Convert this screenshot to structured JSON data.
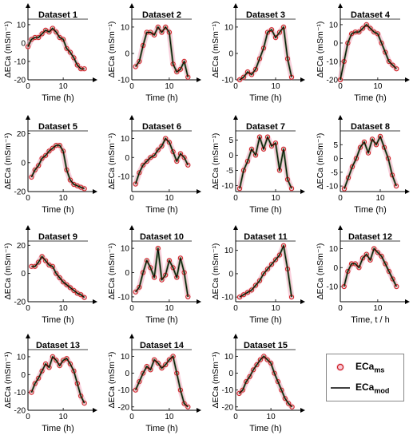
{
  "figure": {
    "marker_color": "#cc2222",
    "marker_halo_color": "#f4a8c0",
    "fit_color": "#000000",
    "fit_band_color": "#1e6e1e"
  },
  "chart_data": [
    {
      "type": "line",
      "title": "Dataset 1",
      "xlabel": "Time (h)",
      "ylabel": "ΔECa (mSm⁻¹)",
      "xlim": [
        0,
        17
      ],
      "ylim": [
        -20,
        13
      ],
      "xticks": [
        0,
        10
      ],
      "yticks": [
        -20,
        -10,
        0,
        10
      ],
      "x": [
        0,
        1,
        2,
        3,
        4,
        5,
        6,
        7,
        8,
        9,
        10,
        11,
        12,
        13,
        14,
        15,
        16
      ],
      "values": [
        -2,
        2,
        3,
        3,
        5,
        7,
        6,
        8,
        6,
        3,
        2,
        -3,
        -5,
        -8,
        -12,
        -14,
        -14
      ]
    },
    {
      "type": "line",
      "title": "Dataset 2",
      "xlabel": "Time (h)",
      "ylabel": "ΔECa (mSm⁻¹)",
      "xlim": [
        0,
        16
      ],
      "ylim": [
        -10,
        13
      ],
      "xticks": [
        0,
        10
      ],
      "yticks": [
        -10,
        0,
        10
      ],
      "x": [
        1,
        2,
        3,
        4,
        5,
        6,
        7,
        8,
        9,
        10,
        11,
        12,
        13,
        14,
        15
      ],
      "values": [
        -5,
        -3,
        3,
        8,
        8,
        7,
        10,
        8,
        10,
        8,
        -4,
        -7,
        -6,
        -3,
        -9
      ]
    },
    {
      "type": "line",
      "title": "Dataset 3",
      "xlabel": "Time (h)",
      "ylabel": "ΔECa (mSm⁻¹)",
      "xlim": [
        0,
        15
      ],
      "ylim": [
        -10,
        13
      ],
      "xticks": [
        0,
        10
      ],
      "yticks": [
        -10,
        0,
        10
      ],
      "x": [
        1,
        2,
        3,
        4,
        5,
        6,
        7,
        8,
        9,
        10,
        11,
        12,
        13,
        14
      ],
      "values": [
        -10,
        -9,
        -7,
        -8,
        -6,
        -2,
        2,
        8,
        9,
        6,
        8,
        10,
        -2,
        -9
      ]
    },
    {
      "type": "line",
      "title": "Dataset 4",
      "xlabel": "Time (h)",
      "ylabel": "ΔECa (mSm⁻¹)",
      "xlim": [
        0,
        16
      ],
      "ylim": [
        -20,
        13
      ],
      "xticks": [
        0,
        10
      ],
      "yticks": [
        -20,
        -10,
        0,
        10
      ],
      "x": [
        0,
        1,
        2,
        3,
        4,
        5,
        6,
        7,
        8,
        9,
        10,
        11,
        12,
        13,
        14,
        15
      ],
      "values": [
        -20,
        -10,
        0,
        5,
        6,
        6,
        8,
        10,
        8,
        6,
        5,
        0,
        -5,
        -10,
        -12,
        -14
      ]
    },
    {
      "type": "line",
      "title": "Dataset 5",
      "xlabel": "Time (h)",
      "ylabel": "ΔECa (mSm⁻¹)",
      "xlim": [
        0,
        17
      ],
      "ylim": [
        -20,
        22
      ],
      "xticks": [
        0,
        10
      ],
      "yticks": [
        -20,
        0,
        20
      ],
      "x": [
        1,
        2,
        3,
        4,
        5,
        6,
        7,
        8,
        9,
        10,
        11,
        12,
        13,
        14,
        15,
        16
      ],
      "values": [
        -10,
        -5,
        -2,
        3,
        5,
        8,
        10,
        12,
        12,
        8,
        -5,
        -12,
        -15,
        -16,
        -17,
        -18
      ]
    },
    {
      "type": "line",
      "title": "Dataset 6",
      "xlabel": "Time (h)",
      "ylabel": "ΔECa (mSm⁻¹)",
      "xlim": [
        0,
        16
      ],
      "ylim": [
        -18,
        14
      ],
      "xticks": [
        0,
        10
      ],
      "yticks": [
        -10,
        0,
        10
      ],
      "x": [
        1,
        2,
        3,
        4,
        5,
        6,
        7,
        8,
        9,
        10,
        11,
        12,
        13,
        14,
        15
      ],
      "values": [
        -14,
        -8,
        -4,
        -2,
        0,
        1,
        4,
        6,
        10,
        8,
        3,
        -2,
        2,
        0,
        -4
      ]
    },
    {
      "type": "line",
      "title": "Dataset 7",
      "xlabel": "Time (h)",
      "ylabel": "ΔECa (mSm⁻¹)",
      "xlim": [
        0,
        15
      ],
      "ylim": [
        -12,
        8
      ],
      "xticks": [
        0,
        10
      ],
      "yticks": [
        -10,
        -5,
        0,
        5
      ],
      "x": [
        1,
        2,
        3,
        4,
        5,
        6,
        7,
        8,
        9,
        10,
        11,
        12,
        13,
        14
      ],
      "values": [
        -11,
        -5,
        -2,
        2,
        0,
        6,
        2,
        6,
        3,
        4,
        -5,
        2,
        -8,
        -11
      ]
    },
    {
      "type": "line",
      "title": "Dataset 8",
      "xlabel": "Time (h)",
      "ylabel": "ΔECa (mSm⁻¹)",
      "xlim": [
        0,
        15
      ],
      "ylim": [
        -12,
        10
      ],
      "xticks": [
        0,
        10
      ],
      "yticks": [
        -10,
        -5,
        0,
        5
      ],
      "x": [
        1,
        2,
        3,
        4,
        5,
        6,
        7,
        8,
        9,
        10,
        11,
        12,
        13,
        14
      ],
      "values": [
        -11,
        -7,
        -3,
        0,
        4,
        6,
        2,
        7,
        5,
        8,
        4,
        0,
        -6,
        -10
      ]
    },
    {
      "type": "line",
      "title": "Dataset 9",
      "xlabel": "Time (h)",
      "ylabel": "ΔECa (mSm⁻¹)",
      "xlim": [
        0,
        17
      ],
      "ylim": [
        -20,
        23
      ],
      "xticks": [
        0,
        10
      ],
      "yticks": [
        -20,
        0,
        20
      ],
      "x": [
        1,
        2,
        3,
        4,
        5,
        6,
        7,
        8,
        9,
        10,
        11,
        12,
        13,
        14,
        15,
        16
      ],
      "values": [
        5,
        5,
        8,
        12,
        9,
        6,
        5,
        0,
        -3,
        -6,
        -8,
        -10,
        -12,
        -14,
        -15,
        -17
      ]
    },
    {
      "type": "line",
      "title": "Dataset 10",
      "xlabel": "Time (h)",
      "ylabel": "ΔECa (mSm⁻¹)",
      "xlim": [
        0,
        16
      ],
      "ylim": [
        -12,
        13
      ],
      "xticks": [
        0,
        10
      ],
      "yticks": [
        -10,
        0,
        10
      ],
      "x": [
        1,
        2,
        3,
        4,
        5,
        6,
        7,
        8,
        9,
        10,
        11,
        12,
        13,
        14,
        15
      ],
      "values": [
        -8,
        -6,
        0,
        5,
        2,
        -2,
        10,
        -3,
        -1,
        5,
        2,
        -2,
        6,
        0,
        -10
      ]
    },
    {
      "type": "line",
      "title": "Dataset 11",
      "xlabel": "Time (h)",
      "ylabel": "ΔECa (mSm⁻¹)",
      "xlim": [
        0,
        15
      ],
      "ylim": [
        -12,
        14
      ],
      "xticks": [
        0,
        10
      ],
      "yticks": [
        -10,
        0,
        10
      ],
      "x": [
        1,
        2,
        3,
        4,
        5,
        6,
        7,
        8,
        9,
        10,
        11,
        12,
        13,
        14
      ],
      "values": [
        -10,
        -9,
        -8,
        -7,
        -5,
        -3,
        0,
        2,
        4,
        6,
        8,
        12,
        2,
        -10
      ]
    },
    {
      "type": "line",
      "title": "Dataset 12",
      "xlabel": "Time, t / h",
      "ylabel": "ΔECa (mSm⁻¹)",
      "xlim": [
        0,
        16
      ],
      "ylim": [
        -18,
        14
      ],
      "xticks": [
        0,
        10
      ],
      "yticks": [
        -10,
        0,
        10
      ],
      "x": [
        1,
        2,
        3,
        4,
        5,
        6,
        7,
        8,
        9,
        10,
        11,
        12,
        13,
        14,
        15
      ],
      "values": [
        -10,
        -2,
        2,
        2,
        0,
        5,
        7,
        4,
        10,
        8,
        6,
        2,
        -2,
        -6,
        -10
      ]
    },
    {
      "type": "line",
      "title": "Dataset 13",
      "xlabel": "Time (h)",
      "ylabel": "ΔECa (mSm⁻¹)",
      "xlim": [
        0,
        17
      ],
      "ylim": [
        -20,
        14
      ],
      "xticks": [
        0,
        10
      ],
      "yticks": [
        -20,
        -10,
        0,
        10
      ],
      "x": [
        1,
        2,
        3,
        4,
        5,
        6,
        7,
        8,
        9,
        10,
        11,
        12,
        13,
        14,
        15,
        16
      ],
      "values": [
        -10,
        -5,
        -2,
        2,
        6,
        4,
        10,
        8,
        5,
        8,
        9,
        6,
        2,
        -5,
        -12,
        -16
      ]
    },
    {
      "type": "line",
      "title": "Dataset 14",
      "xlabel": "Time (h)",
      "ylabel": "ΔECa (mSm⁻¹)",
      "xlim": [
        0,
        16
      ],
      "ylim": [
        -22,
        14
      ],
      "xticks": [
        0,
        10
      ],
      "yticks": [
        -20,
        -10,
        0,
        10
      ],
      "x": [
        1,
        2,
        3,
        4,
        5,
        6,
        7,
        8,
        9,
        10,
        11,
        12,
        13,
        14,
        15
      ],
      "values": [
        -10,
        -5,
        0,
        4,
        2,
        8,
        6,
        3,
        5,
        8,
        10,
        0,
        -10,
        -18,
        -20
      ]
    },
    {
      "type": "line",
      "title": "Dataset 15",
      "xlabel": "Time (h)",
      "ylabel": "ΔECa (mSm⁻¹)",
      "xlim": [
        0,
        17
      ],
      "ylim": [
        -22,
        14
      ],
      "xticks": [
        0,
        10
      ],
      "yticks": [
        -20,
        -10,
        0,
        10
      ],
      "x": [
        1,
        2,
        3,
        4,
        5,
        6,
        7,
        8,
        9,
        10,
        11,
        12,
        13,
        14,
        15,
        16
      ],
      "values": [
        -12,
        -10,
        -5,
        -2,
        2,
        5,
        8,
        10,
        8,
        6,
        0,
        -5,
        -10,
        -15,
        -18,
        -20
      ]
    }
  ],
  "legend": {
    "measured_label": "ECa",
    "measured_sub": "ms",
    "model_label": "ECa",
    "model_sub": "mod"
  }
}
